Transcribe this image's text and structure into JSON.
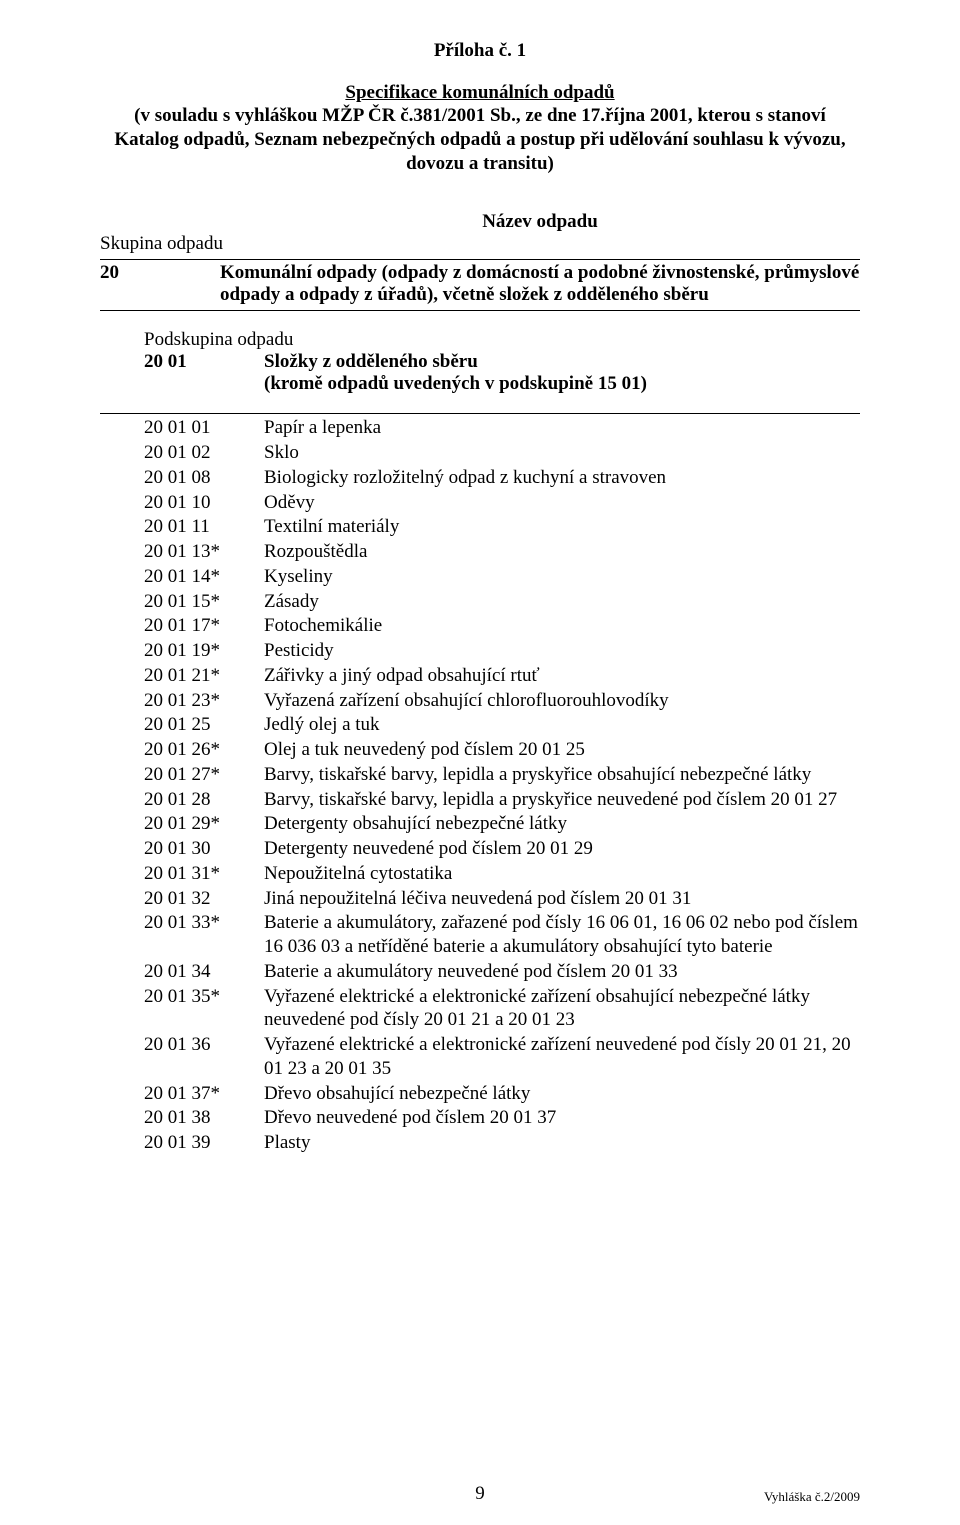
{
  "header": {
    "title": "Příloha č. 1",
    "spec_title": "Specifikace komunálních odpadů",
    "spec_desc_line1": "(v souladu s vyhláškou MŽP ČR č.381/2001 Sb., ze dne 17.října 2001, kterou s stanoví Katalog odpadů, Seznam nebezpečných odpadů a postup při udělování souhlasu k vývozu, dovozu a transitu)"
  },
  "group": {
    "label": "Skupina odpadu",
    "name_label": "Název odpadu",
    "code": "20",
    "desc": "Komunální odpady (odpady z domácností a podobné živnostenské, průmyslové odpady a odpady z úřadů), včetně složek z odděleného sběru"
  },
  "subgroup": {
    "label": "Podskupina odpadu",
    "code": "20 01",
    "desc_line1": "Složky z odděleného sběru",
    "desc_line2": "(kromě odpadů uvedených v podskupině 15 01)"
  },
  "items": [
    {
      "code": "20 01 01",
      "text": "Papír a  lepenka"
    },
    {
      "code": "20 01 02",
      "text": "Sklo"
    },
    {
      "code": "20 01 08",
      "text": "Biologicky rozložitelný odpad z kuchyní a stravoven"
    },
    {
      "code": "20 01 10",
      "text": "Oděvy"
    },
    {
      "code": "20 01 11",
      "text": "Textilní materiály"
    },
    {
      "code": "20 01 13*",
      "text": "Rozpouštědla"
    },
    {
      "code": "20 01 14*",
      "text": "Kyseliny"
    },
    {
      "code": "20 01 15*",
      "text": "Zásady"
    },
    {
      "code": "20 01 17*",
      "text": "Fotochemikálie"
    },
    {
      "code": "20 01 19*",
      "text": "Pesticidy"
    },
    {
      "code": "20 01 21*",
      "text": "Zářivky a jiný odpad obsahující rtuť"
    },
    {
      "code": "20 01 23*",
      "text": "Vyřazená zařízení obsahující chlorofluorouhlovodíky"
    },
    {
      "code": "20 01 25",
      "text": "Jedlý olej a tuk"
    },
    {
      "code": "20 01 26*",
      "text": "Olej a tuk neuvedený pod číslem 20 01 25"
    },
    {
      "code": "20 01 27*",
      "text": "Barvy, tiskařské barvy, lepidla a pryskyřice obsahující nebezpečné látky"
    },
    {
      "code": "20 01 28",
      "text": "Barvy, tiskařské barvy, lepidla a pryskyřice neuvedené pod číslem 20 01 27"
    },
    {
      "code": "20 01 29*",
      "text": "Detergenty obsahující nebezpečné látky"
    },
    {
      "code": "20 01 30",
      "text": "Detergenty neuvedené pod číslem 20 01 29"
    },
    {
      "code": "20 01 31*",
      "text": "Nepoužitelná cytostatika"
    },
    {
      "code": "20 01 32",
      "text": "Jiná nepoužitelná léčiva neuvedená pod číslem 20 01 31"
    },
    {
      "code": "20 01 33*",
      "text": "Baterie a akumulátory, zařazené pod čísly 16 06 01, 16 06 02 nebo pod číslem 16 036 03 a netříděné baterie a akumulátory obsahující tyto baterie"
    },
    {
      "code": "20 01 34",
      "text": "Baterie a akumulátory neuvedené pod číslem 20 01 33"
    },
    {
      "code": "20 01 35*",
      "text": "Vyřazené elektrické a elektronické zařízení obsahující nebezpečné látky neuvedené pod čísly 20 01 21 a 20 01 23"
    },
    {
      "code": "20 01 36",
      "text": "Vyřazené elektrické a elektronické zařízení neuvedené pod čísly 20 01 21, 20 01 23 a 20 01 35"
    },
    {
      "code": "20 01 37*",
      "text": "Dřevo obsahující nebezpečné látky"
    },
    {
      "code": "20 01 38",
      "text": "Dřevo neuvedené pod číslem 20 01 37"
    },
    {
      "code": "20 01 39",
      "text": "Plasty"
    }
  ],
  "footer": {
    "page_number": "9",
    "reference": "Vyhláška č.2/2009"
  }
}
